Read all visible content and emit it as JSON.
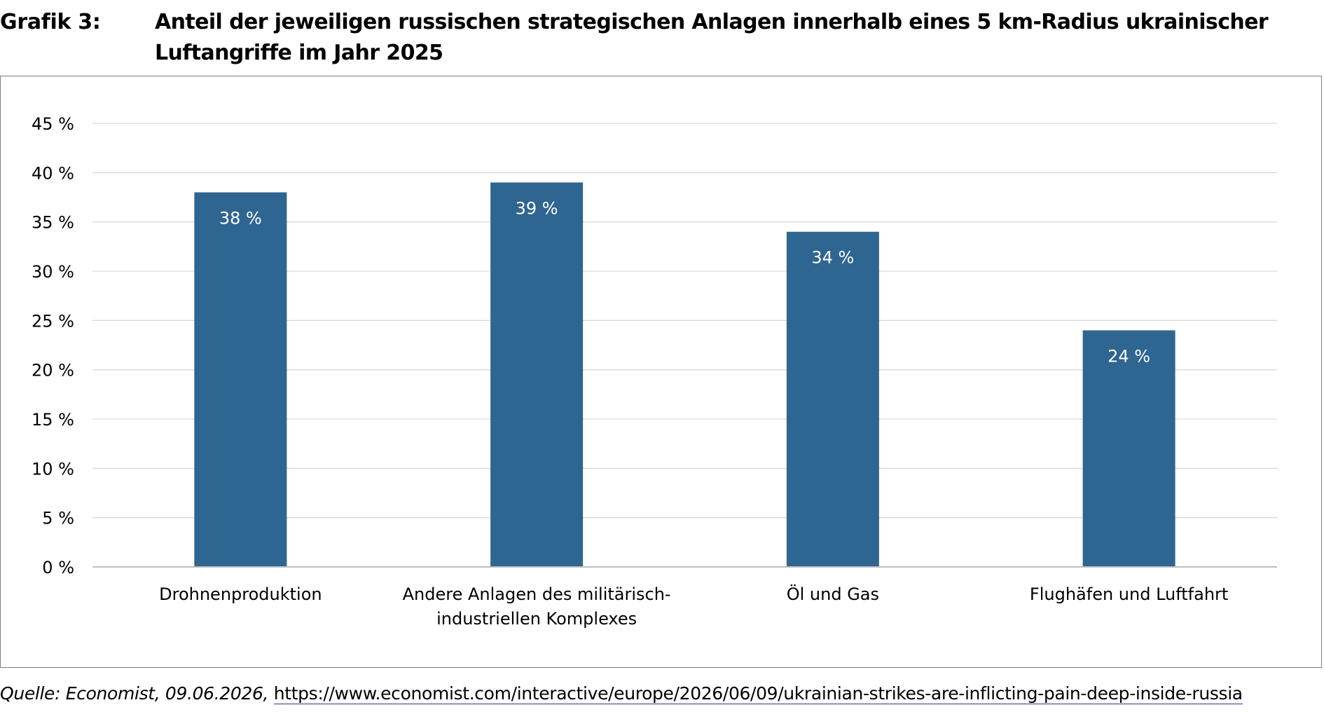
{
  "header": {
    "label": "Grafik 3:",
    "title": "Anteil der jeweiligen russischen strategischen Anlagen innerhalb eines 5 km-Radius ukrainischer Luftangriffe im Jahr 2025"
  },
  "source": {
    "prefix": "Quelle: Economist, 09.06.2026,",
    "link": "https://www.economist.com/interactive/europe/2026/06/09/ukrainian-strikes-are-inflicting-pain-deep-inside-russia"
  },
  "colors": {
    "bar": "#2e6591",
    "grid": "#d9d9d9",
    "axis": "#bfbfbf",
    "frame": "#7f7f7f",
    "bar_label": "#ffffff",
    "text": "#000000"
  },
  "chart_data": {
    "type": "bar",
    "categories": [
      [
        "Drohnenproduktion"
      ],
      [
        "Andere Anlagen des militärisch-",
        "industriellen Komplexes"
      ],
      [
        "Öl und Gas"
      ],
      [
        "Flughäfen und Luftfahrt"
      ]
    ],
    "values": [
      38,
      39,
      34,
      24
    ],
    "data_labels": [
      "38 %",
      "39 %",
      "34 %",
      "24 %"
    ],
    "ylim": [
      0,
      45
    ],
    "yticks": [
      0,
      5,
      10,
      15,
      20,
      25,
      30,
      35,
      40,
      45
    ],
    "ytick_labels": [
      "0 %",
      "5 %",
      "10 %",
      "15 %",
      "20 %",
      "25 %",
      "30 %",
      "35 %",
      "40 %",
      "45 %"
    ],
    "grid": true,
    "legend": "none",
    "title": "",
    "xlabel": "",
    "ylabel": ""
  }
}
